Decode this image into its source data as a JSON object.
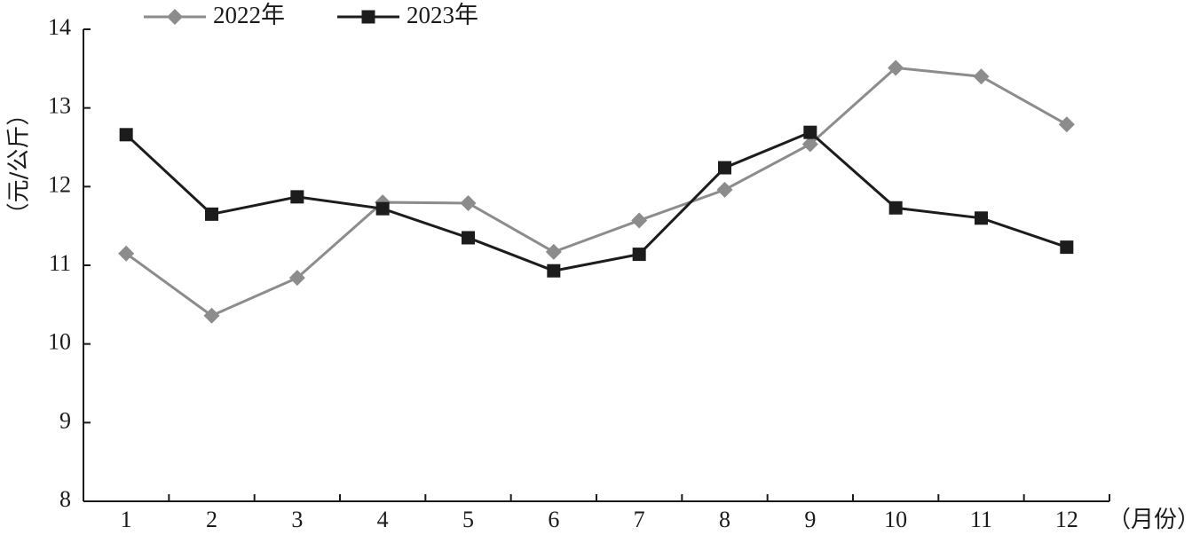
{
  "chart_data": {
    "type": "line",
    "x": [
      1,
      2,
      3,
      4,
      5,
      6,
      7,
      8,
      9,
      10,
      11,
      12
    ],
    "series": [
      {
        "name": "2022年",
        "color": "#8c8c8c",
        "marker": "diamond",
        "values": [
          11.15,
          10.36,
          10.84,
          11.8,
          11.79,
          11.17,
          11.57,
          11.96,
          12.54,
          13.51,
          13.4,
          12.79
        ]
      },
      {
        "name": "2023年",
        "color": "#1c1c1c",
        "marker": "square",
        "values": [
          12.66,
          11.65,
          11.87,
          11.72,
          11.35,
          10.93,
          11.14,
          12.24,
          12.69,
          11.73,
          11.6,
          11.23
        ]
      }
    ],
    "xlabel": "（月份）",
    "ylabel": "（元/公斤）",
    "ylim": [
      8,
      14
    ],
    "yticks": [
      8,
      9,
      10,
      11,
      12,
      13,
      14
    ],
    "grid": false,
    "legend_position": "top-left"
  }
}
